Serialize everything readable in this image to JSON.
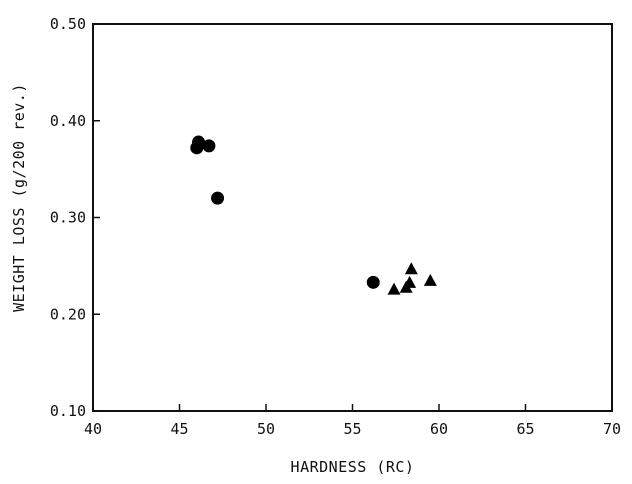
{
  "chart_data": {
    "type": "scatter",
    "title": "",
    "xlabel": "HARDNESS (RC)",
    "ylabel": "WEIGHT LOSS (g/200 rev.)",
    "xlim": [
      40,
      70
    ],
    "ylim": [
      0.1,
      0.5
    ],
    "xticks": [
      40,
      45,
      50,
      55,
      60,
      65,
      70
    ],
    "yticks": [
      0.1,
      0.2,
      0.3,
      0.4,
      0.5
    ],
    "xtick_labels": [
      "40",
      "45",
      "50",
      "55",
      "60",
      "65",
      "70"
    ],
    "ytick_labels": [
      "0.10",
      "0.20",
      "0.30",
      "0.40",
      "0.50"
    ],
    "grid": false,
    "legend": "none",
    "series": [
      {
        "marker": "circle",
        "color": "#000000",
        "points": [
          {
            "x": 46.1,
            "y": 0.378
          },
          {
            "x": 46.0,
            "y": 0.372
          },
          {
            "x": 46.7,
            "y": 0.374
          },
          {
            "x": 47.2,
            "y": 0.32
          },
          {
            "x": 56.2,
            "y": 0.233
          }
        ]
      },
      {
        "marker": "triangle",
        "color": "#000000",
        "points": [
          {
            "x": 57.4,
            "y": 0.225
          },
          {
            "x": 58.1,
            "y": 0.227
          },
          {
            "x": 58.3,
            "y": 0.232
          },
          {
            "x": 58.4,
            "y": 0.246
          },
          {
            "x": 59.5,
            "y": 0.234
          }
        ]
      }
    ]
  }
}
